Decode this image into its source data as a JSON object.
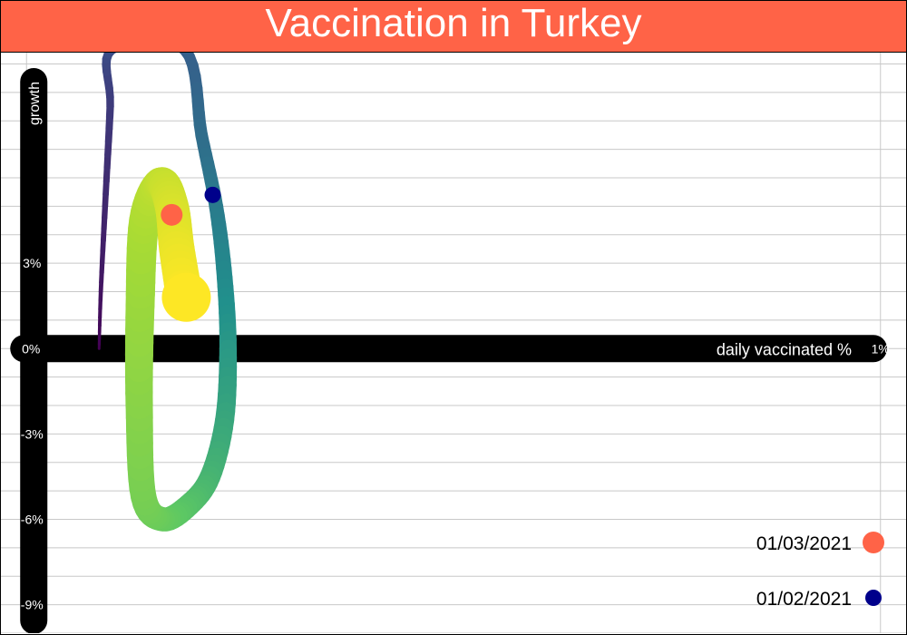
{
  "header": {
    "title": "Vaccination in Turkey"
  },
  "colors": {
    "title_bg": "#ff6347",
    "axis_bar": "#000000",
    "grid": "#c8c8c8",
    "marker_a": "#ff6347",
    "marker_b": "#00008b",
    "path_palette": [
      "#440154",
      "#3b528b",
      "#21908c",
      "#5dc863",
      "#a8db34",
      "#fde725"
    ]
  },
  "chart_data": {
    "type": "line",
    "title": "Vaccination in Turkey",
    "xlabel": "daily vaccinated %",
    "ylabel": "growth",
    "xlim": [
      -0.03,
      1.03
    ],
    "ylim": [
      -10,
      10.4
    ],
    "x_ticks": [
      {
        "value": 0,
        "label": "0%"
      },
      {
        "value": 1,
        "label": "1%"
      }
    ],
    "y_ticks": [
      {
        "value": 3,
        "label": "3%"
      },
      {
        "value": -3,
        "label": "-3%"
      },
      {
        "value": -6,
        "label": "-6%"
      },
      {
        "value": -9,
        "label": "-9%"
      }
    ],
    "grid": true,
    "color_scale": "viridis",
    "series": [
      {
        "points": [
          {
            "x": 0.085,
            "y": 0.0
          },
          {
            "x": 0.087,
            "y": 2.0
          },
          {
            "x": 0.092,
            "y": 5.0
          },
          {
            "x": 0.098,
            "y": 8.5
          },
          {
            "x": 0.1,
            "y": 10.5
          },
          {
            "x": 0.185,
            "y": 10.5
          },
          {
            "x": 0.205,
            "y": 7.5
          },
          {
            "x": 0.222,
            "y": 5.0
          },
          {
            "x": 0.232,
            "y": 2.5
          },
          {
            "x": 0.236,
            "y": 0.0
          },
          {
            "x": 0.232,
            "y": -2.5
          },
          {
            "x": 0.215,
            "y": -4.5
          },
          {
            "x": 0.19,
            "y": -5.5
          },
          {
            "x": 0.16,
            "y": -6.0
          },
          {
            "x": 0.137,
            "y": -5.2
          },
          {
            "x": 0.132,
            "y": -2.0
          },
          {
            "x": 0.133,
            "y": 1.5
          },
          {
            "x": 0.138,
            "y": 4.5
          },
          {
            "x": 0.157,
            "y": 5.8
          },
          {
            "x": 0.17,
            "y": 5.0
          },
          {
            "x": 0.176,
            "y": 3.5
          },
          {
            "x": 0.185,
            "y": 1.8
          }
        ]
      }
    ],
    "highlights": [
      {
        "label": "01/03/2021",
        "x": 0.17,
        "y": 4.7,
        "color": "#ff6347"
      },
      {
        "label": "01/02/2021",
        "x": 0.218,
        "y": 5.4,
        "color": "#00008b"
      }
    ]
  }
}
